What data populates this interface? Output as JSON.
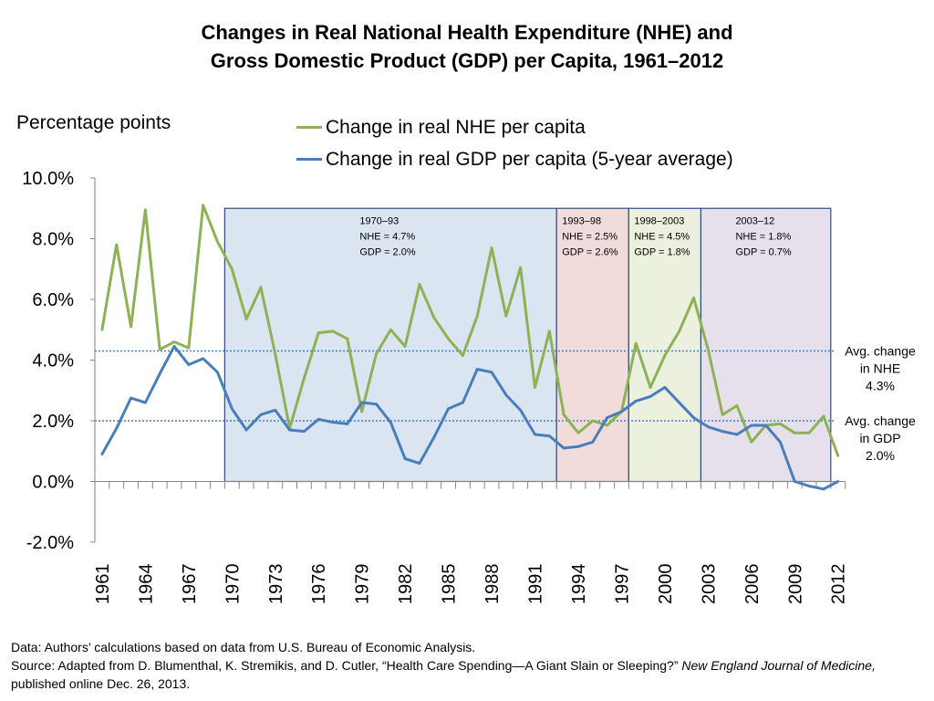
{
  "title_lines": [
    "Changes in Real National Health Expenditure (NHE) and",
    "Gross Domestic Product (GDP) per Capita, 1961–2012"
  ],
  "y_axis_unit_label": "Percentage points",
  "legend": [
    {
      "label": "Change in real NHE per capita",
      "color": "#8db255"
    },
    {
      "label": "Change in real GDP per capita (5-year average)",
      "color": "#4a7ebb"
    }
  ],
  "colors": {
    "nhe": "#8db255",
    "gdp": "#4a7ebb",
    "avg_line": "#4a7ebb",
    "axis": "#868686"
  },
  "footer": {
    "data_line": "Data: Authors’ calculations based on data from U.S. Bureau of Economic Analysis.",
    "source_prefix": "Source: Adapted from D. Blumenthal, K. Stremikis, and D. Cutler, “Health Care Spending—A Giant Slain or Sleeping?” ",
    "journal": "New England Journal of Medicine,",
    "source_suffix": " published online Dec. 26, 2013."
  },
  "chart_data": {
    "type": "line",
    "title": "Changes in Real National Health Expenditure (NHE) and Gross Domestic Product (GDP) per Capita, 1961–2012",
    "ylabel": "Percentage points",
    "ylim": [
      -2.0,
      10.0
    ],
    "yticks": [
      -2.0,
      0.0,
      2.0,
      4.0,
      6.0,
      8.0,
      10.0
    ],
    "ytick_labels": [
      "-2.0%",
      "0.0%",
      "2.0%",
      "4.0%",
      "6.0%",
      "8.0%",
      "10.0%"
    ],
    "x": [
      1961,
      1962,
      1963,
      1964,
      1965,
      1966,
      1967,
      1968,
      1969,
      1970,
      1971,
      1972,
      1973,
      1974,
      1975,
      1976,
      1977,
      1978,
      1979,
      1980,
      1981,
      1982,
      1983,
      1984,
      1985,
      1986,
      1987,
      1988,
      1989,
      1990,
      1991,
      1992,
      1993,
      1994,
      1995,
      1996,
      1997,
      1998,
      1999,
      2000,
      2001,
      2002,
      2003,
      2004,
      2005,
      2006,
      2007,
      2008,
      2009,
      2010,
      2011,
      2012
    ],
    "xtick_labels": [
      "1961",
      "1964",
      "1967",
      "1970",
      "1973",
      "1976",
      "1979",
      "1982",
      "1985",
      "1988",
      "1991",
      "1994",
      "1997",
      "2000",
      "2003",
      "2006",
      "2009",
      "2012"
    ],
    "series": [
      {
        "name": "Change in real NHE per capita",
        "values": [
          5.0,
          7.8,
          5.1,
          8.95,
          4.35,
          4.6,
          4.4,
          9.1,
          7.9,
          7.0,
          5.35,
          6.4,
          4.2,
          1.75,
          3.4,
          4.9,
          4.95,
          4.7,
          2.3,
          4.2,
          5.0,
          4.45,
          6.5,
          5.4,
          4.7,
          4.15,
          5.45,
          7.7,
          5.45,
          7.05,
          3.1,
          4.95,
          2.2,
          1.6,
          2.0,
          1.85,
          2.3,
          4.55,
          3.1,
          4.15,
          4.95,
          6.05,
          4.35,
          2.2,
          2.5,
          1.3,
          1.85,
          1.9,
          1.6,
          1.6,
          2.15,
          0.85
        ]
      },
      {
        "name": "Change in real GDP per capita (5-year average)",
        "values": [
          0.9,
          1.75,
          2.75,
          2.6,
          3.55,
          4.45,
          3.85,
          4.05,
          3.6,
          2.4,
          1.7,
          2.2,
          2.35,
          1.7,
          1.65,
          2.05,
          1.95,
          1.9,
          2.6,
          2.55,
          1.95,
          0.75,
          0.6,
          1.45,
          2.4,
          2.6,
          3.7,
          3.6,
          2.85,
          2.35,
          1.55,
          1.5,
          1.1,
          1.15,
          1.3,
          2.1,
          2.3,
          2.65,
          2.8,
          3.1,
          2.6,
          2.1,
          1.8,
          1.65,
          1.55,
          1.85,
          1.85,
          1.3,
          0.0,
          -0.15,
          -0.25,
          0.0
        ]
      }
    ],
    "periods": [
      {
        "label": "1970–93",
        "nhe": "NHE = 4.7%",
        "gdp": "GDP = 2.0%",
        "fill": "#dbe5f1",
        "start": 1970,
        "end": 1993
      },
      {
        "label": "1993–98",
        "nhe": "NHE = 2.5%",
        "gdp": "GDP = 2.6%",
        "fill": "#f2dcdb",
        "start": 1993,
        "end": 1998
      },
      {
        "label": "1998–2003",
        "nhe": "NHE = 4.5%",
        "gdp": "GDP = 1.8%",
        "fill": "#ebf1de",
        "start": 1998,
        "end": 2003
      },
      {
        "label": "2003–12",
        "nhe": "NHE = 1.8%",
        "gdp": "GDP = 0.7%",
        "fill": "#e5e0ec",
        "start": 2003,
        "end": 2012
      }
    ],
    "averages": [
      {
        "value": 4.3,
        "lines": [
          "Avg. change",
          "in NHE",
          "4.3%"
        ]
      },
      {
        "value": 2.0,
        "lines": [
          "Avg. change",
          "in GDP",
          "2.0%"
        ]
      }
    ],
    "grid": false,
    "legend_position": "top"
  }
}
